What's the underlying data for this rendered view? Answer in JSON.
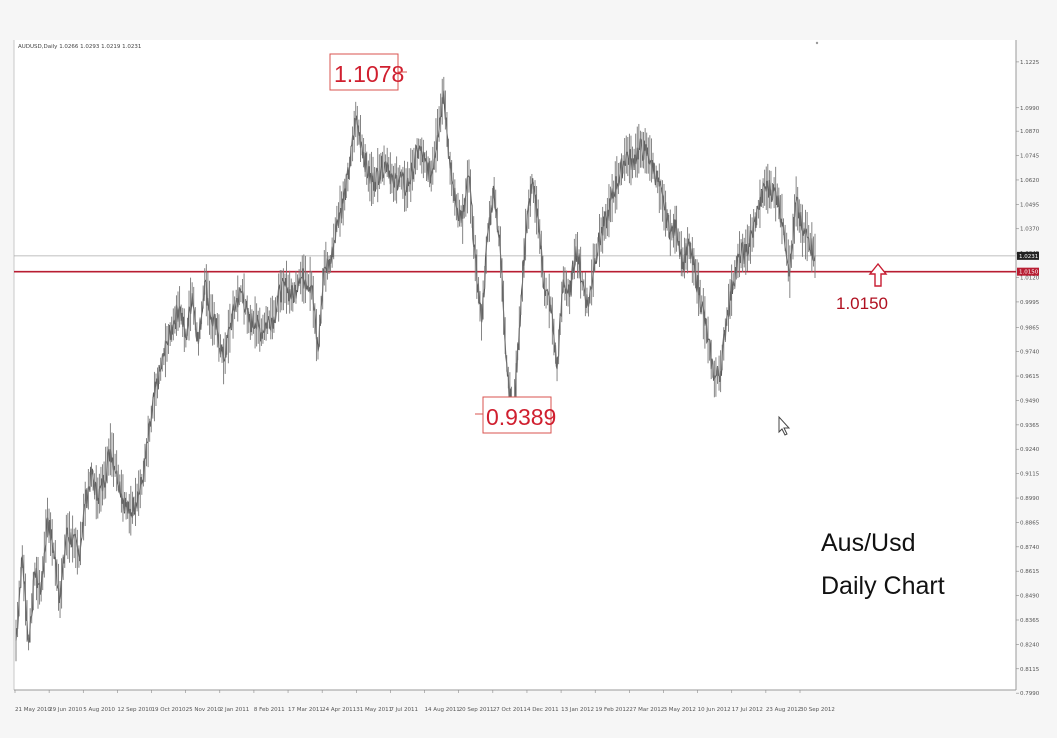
{
  "header": {
    "text": "AUDUSD,Daily  1.0266 1.0293 1.0219 1.0231"
  },
  "caption": {
    "line1": "Aus/Usd",
    "line2": "Daily Chart"
  },
  "chart_data": {
    "type": "line",
    "symbol": "AUDUSD",
    "timeframe": "Daily",
    "ylim": [
      0.7955,
      1.1245
    ],
    "grid": false,
    "x_ticks": [
      "21 May 2010",
      "29 Jun 2010",
      "5 Aug 2010",
      "12 Sep 2010",
      "19 Oct 2010",
      "25 Nov 2010",
      "2 Jan 2011",
      "8 Feb 2011",
      "17 Mar 2011",
      "24 Apr 2011",
      "31 May 2011",
      "7 Jul 2011",
      "14 Aug 2011",
      "20 Sep 2011",
      "27 Oct 2011",
      "4 Dec 2011",
      "13 Jan 2012",
      "19 Feb 2012",
      "27 Mar 2012",
      "3 May 2012",
      "10 Jun 2012",
      "17 Jul 2012",
      "23 Aug 2012",
      "30 Sep 2012"
    ],
    "y_ticks": [
      "1.1225",
      "1.0990",
      "1.0870",
      "1.0745",
      "1.0620",
      "1.0495",
      "1.0370",
      "1.0245",
      "1.0120",
      "0.9995",
      "0.9865",
      "0.9740",
      "0.9615",
      "0.9490",
      "0.9365",
      "0.9240",
      "0.9115",
      "0.8990",
      "0.8865",
      "0.8740",
      "0.8615",
      "0.8490",
      "0.8365",
      "0.8240",
      "0.8115",
      "0.7990"
    ],
    "current_price": "1.0231",
    "level_price": "1.0150",
    "series": [
      {
        "values": [
          0.826,
          0.869,
          0.825,
          0.86,
          0.851,
          0.889,
          0.872,
          0.847,
          0.88,
          0.878,
          0.869,
          0.896,
          0.911,
          0.899,
          0.908,
          0.924,
          0.913,
          0.899,
          0.891,
          0.897,
          0.906,
          0.928,
          0.951,
          0.965,
          0.978,
          0.988,
          0.997,
          0.981,
          1.004,
          0.978,
          1.01,
          0.992,
          0.985,
          0.969,
          0.986,
          1.0,
          1.005,
          0.989,
          0.989,
          0.984,
          0.99,
          0.992,
          1.005,
          1.007,
          1.002,
          1.012,
          1.011,
          1.008,
          0.974,
          1.017,
          1.019,
          1.042,
          1.05,
          1.068,
          1.093,
          1.08,
          1.064,
          1.061,
          1.068,
          1.071,
          1.06,
          1.064,
          1.057,
          1.067,
          1.078,
          1.071,
          1.064,
          1.085,
          1.1078,
          1.068,
          1.048,
          1.042,
          1.064,
          1.022,
          0.989,
          1.035,
          1.058,
          1.025,
          0.968,
          0.9389,
          0.986,
          1.034,
          1.06,
          1.042,
          1.006,
          0.998,
          0.965,
          1.011,
          1.002,
          1.028,
          1.01,
          0.997,
          1.022,
          1.034,
          1.043,
          1.056,
          1.065,
          1.075,
          1.071,
          1.078,
          1.077,
          1.072,
          1.061,
          1.048,
          1.035,
          1.037,
          1.02,
          1.028,
          1.014,
          0.998,
          0.98,
          0.96,
          0.964,
          0.992,
          1.01,
          1.024,
          1.025,
          1.034,
          1.047,
          1.058,
          1.057,
          1.054,
          1.038,
          1.015,
          1.051,
          1.036,
          1.032,
          1.0231
        ]
      }
    ]
  },
  "annotations": {
    "high": "1.1078",
    "low": "0.9389",
    "level": "1.0150"
  }
}
